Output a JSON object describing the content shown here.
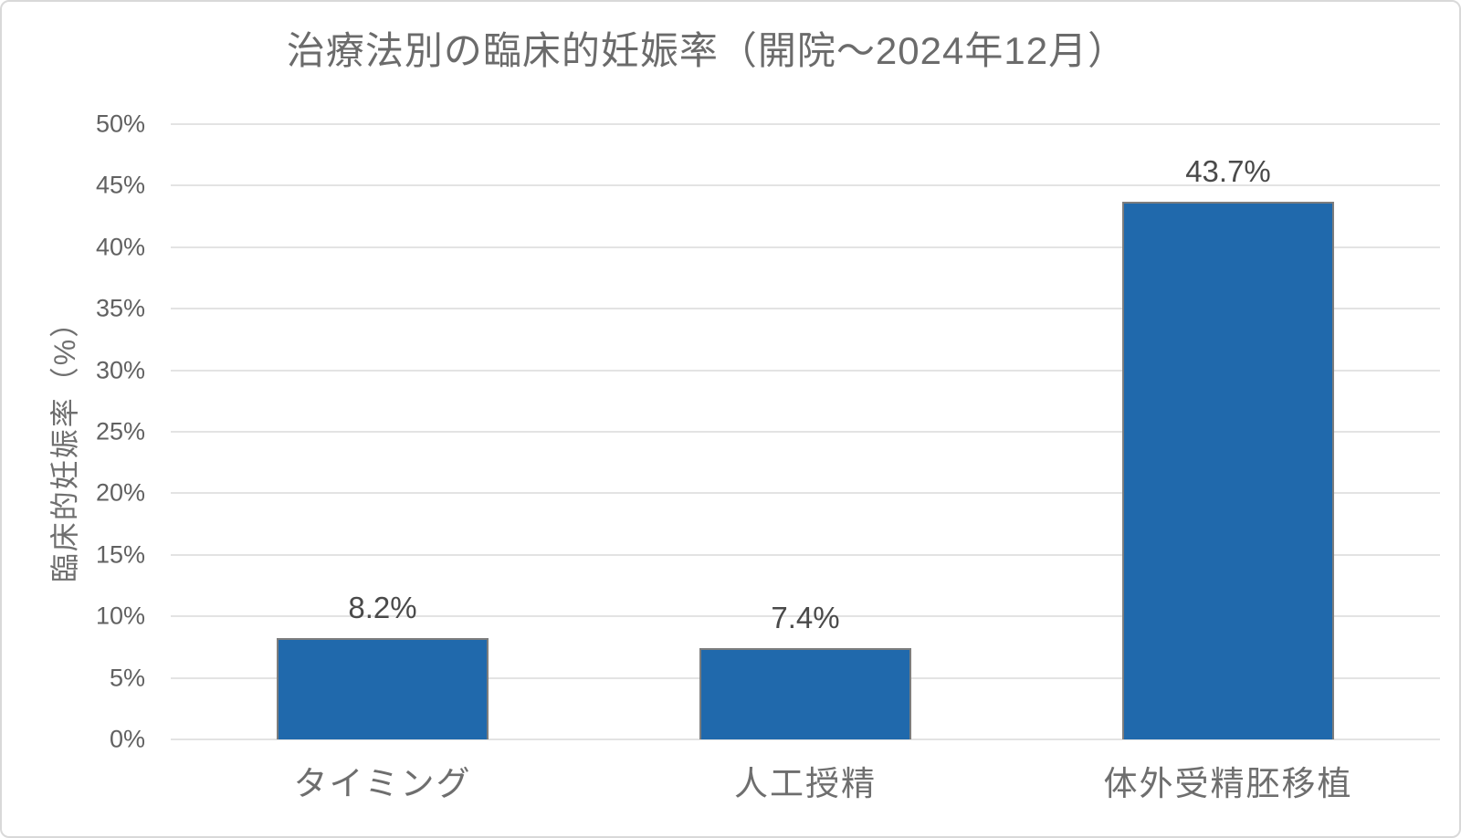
{
  "title": "治療法別の臨床的妊娠率（開院～2024年12月）",
  "chart_data": {
    "type": "bar",
    "title": "治療法別の臨床的妊娠率（開院～2024年12月）",
    "categories": [
      "タイミング",
      "人工授精",
      "体外受精胚移植"
    ],
    "values": [
      8.2,
      7.4,
      43.7
    ],
    "value_labels": [
      "8.2%",
      "7.4%",
      "43.7%"
    ],
    "xlabel": "",
    "ylabel": "臨床的妊娠率（%）",
    "ylim": [
      0,
      50
    ],
    "ytick_step": 5,
    "yticks": [
      "50%",
      "45%",
      "40%",
      "35%",
      "30%",
      "25%",
      "20%",
      "15%",
      "10%",
      "5%",
      "0%"
    ],
    "grid": true,
    "legend": false,
    "colors": {
      "bar_fill": "#2069ac",
      "bar_border": "#7d7d7d",
      "gridline": "#e3e3e3",
      "title_text": "#6b6b6b",
      "tick_text": "#616161",
      "value_label_text": "#4a4a4a",
      "category_text": "#6e6e6e",
      "card_border": "#d9d9d9"
    }
  }
}
